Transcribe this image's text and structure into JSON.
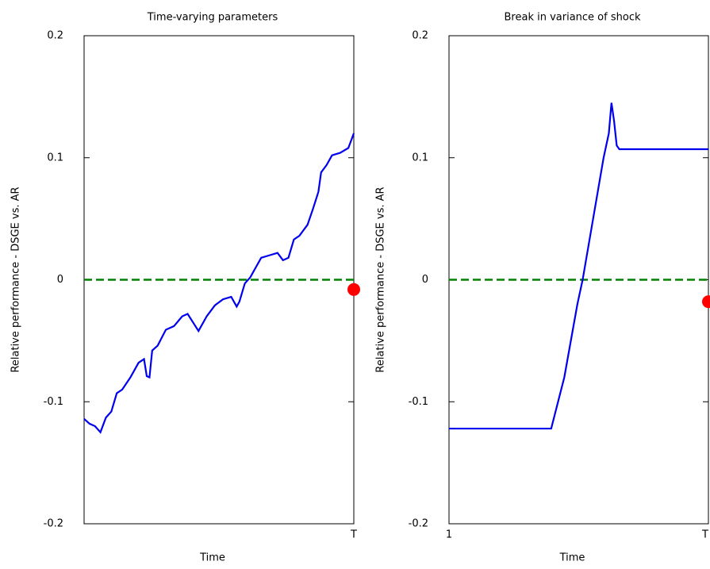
{
  "chart_data": [
    {
      "type": "line",
      "title": "Time-varying parameters",
      "xlabel": "Time",
      "ylabel": "Relative performance - DSGE vs. AR",
      "x": [
        1,
        3,
        5,
        7,
        9,
        11,
        13,
        15,
        18,
        21,
        23,
        24,
        25,
        26,
        28,
        31,
        34,
        37,
        39,
        41,
        43,
        46,
        49,
        52,
        55,
        57,
        58,
        60,
        62,
        64,
        66,
        69,
        72,
        74,
        76,
        78,
        80,
        83,
        85,
        87,
        88,
        90,
        92,
        95,
        98,
        100
      ],
      "series": [
        {
          "color": "#0000ee",
          "values": [
            -0.114,
            -0.118,
            -0.12,
            -0.125,
            -0.113,
            -0.108,
            -0.093,
            -0.09,
            -0.08,
            -0.068,
            -0.065,
            -0.079,
            -0.08,
            -0.058,
            -0.054,
            -0.041,
            -0.038,
            -0.03,
            -0.028,
            -0.035,
            -0.042,
            -0.03,
            -0.021,
            -0.016,
            -0.014,
            -0.022,
            -0.018,
            -0.003,
            0.002,
            0.01,
            0.018,
            0.02,
            0.022,
            0.016,
            0.018,
            0.033,
            0.036,
            0.045,
            0.058,
            0.072,
            0.088,
            0.094,
            0.102,
            0.104,
            0.108,
            0.12
          ]
        }
      ],
      "hline": {
        "y": 0,
        "color": "#008000",
        "dash": true
      },
      "endpoint": {
        "x": 100,
        "y": -0.008,
        "color": "#ff0000"
      },
      "xlim": [
        1,
        100
      ],
      "xticks": [
        {
          "value": 100,
          "label": "T"
        }
      ],
      "ylim": [
        -0.2,
        0.2
      ],
      "yticks": [
        -0.2,
        -0.1,
        0,
        0.1,
        0.2
      ]
    },
    {
      "type": "line",
      "title": "Break in variance of shock",
      "xlabel": "Time",
      "ylabel": "Relative performance - DSGE vs. AR",
      "x": [
        1,
        40,
        45,
        50,
        52,
        56,
        60,
        62,
        63,
        64,
        65,
        66,
        70,
        80,
        90,
        100
      ],
      "series": [
        {
          "color": "#0000ee",
          "values": [
            -0.122,
            -0.122,
            -0.08,
            -0.02,
            0.0,
            0.05,
            0.1,
            0.12,
            0.145,
            0.13,
            0.11,
            0.107,
            0.107,
            0.107,
            0.107,
            0.107
          ]
        }
      ],
      "hline": {
        "y": 0,
        "color": "#008000",
        "dash": true
      },
      "endpoint": {
        "x": 100,
        "y": -0.018,
        "color": "#ff0000"
      },
      "xlim": [
        1,
        100
      ],
      "xticks": [
        {
          "value": 1,
          "label": "1"
        },
        {
          "value": 100,
          "label": "T"
        }
      ],
      "ylim": [
        -0.2,
        0.2
      ],
      "yticks": [
        -0.2,
        -0.1,
        0,
        0.1,
        0.2
      ]
    }
  ]
}
